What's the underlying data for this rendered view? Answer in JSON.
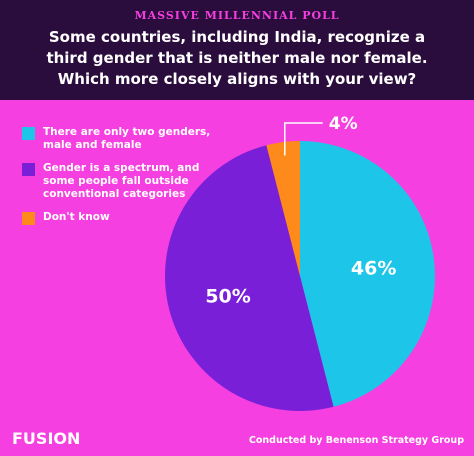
{
  "kicker": "MASSIVE MILLENNIAL POLL",
  "brand": "FUSION",
  "source": "Conducted by Benenson Strategy Group",
  "chart_data": {
    "type": "pie",
    "title": [
      "Some countries, including India, recognize a",
      "third gender that is neither male nor female.",
      "Which more closely aligns with your view?"
    ],
    "categories": [
      "There are only two genders, male and female",
      "Gender is a spectrum, and some people fall outside conventional categories",
      "Don't know"
    ],
    "values": [
      46,
      50,
      4
    ],
    "value_labels": [
      "46%",
      "50%",
      "4%"
    ],
    "colors": [
      "#1dc6e8",
      "#7a1fd8",
      "#ff8a1c"
    ]
  }
}
